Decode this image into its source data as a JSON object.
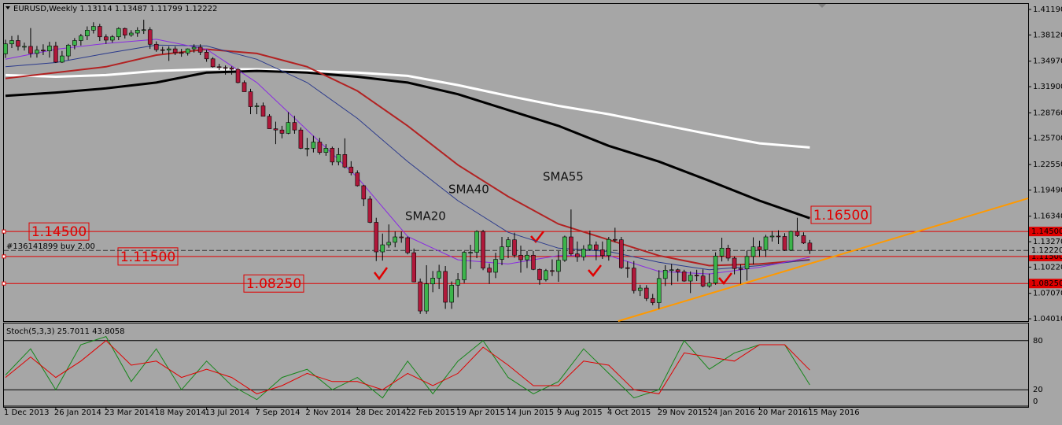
{
  "chart_data": {
    "type": "candlestick",
    "title": "EURUSD,Weekly  1.13114 1.13487 1.11799 1.12222",
    "order_label": "#136141899 buy 2.00",
    "annotations": [
      "SMA20",
      "SMA40",
      "SMA55"
    ],
    "xlim": [
      -0.25,
      162.75
    ],
    "ylim": [
      1.0373,
      1.4185
    ],
    "xticks": [
      {
        "value": 0,
        "label": "1 Dec 2013"
      },
      {
        "value": 8,
        "label": "26 Jan 2014"
      },
      {
        "value": 16,
        "label": "23 Mar 2014"
      },
      {
        "value": 24,
        "label": "18 May 2014"
      },
      {
        "value": 32,
        "label": "13 Jul 2014"
      },
      {
        "value": 40,
        "label": "7 Sep 2014"
      },
      {
        "value": 48,
        "label": "2 Nov 2014"
      },
      {
        "value": 56,
        "label": "28 Dec 2014"
      },
      {
        "value": 64,
        "label": "22 Feb 2015"
      },
      {
        "value": 72,
        "label": "19 Apr 2015"
      },
      {
        "value": 80,
        "label": "14 Jun 2015"
      },
      {
        "value": 88,
        "label": "9 Aug 2015"
      },
      {
        "value": 96,
        "label": "4 Oct 2015"
      },
      {
        "value": 104,
        "label": "29 Nov 2015"
      },
      {
        "value": 112,
        "label": "24 Jan 2016"
      },
      {
        "value": 120,
        "label": "20 Mar 2016"
      },
      {
        "value": 128,
        "label": "15 May 2016"
      }
    ],
    "yticks": [
      {
        "value": 1.4119,
        "label": "1.41190"
      },
      {
        "value": 1.3812,
        "label": "1.38120"
      },
      {
        "value": 1.3497,
        "label": "1.34970"
      },
      {
        "value": 1.319,
        "label": "1.31900"
      },
      {
        "value": 1.2876,
        "label": "1.28760"
      },
      {
        "value": 1.257,
        "label": "1.25700"
      },
      {
        "value": 1.2255,
        "label": "1.22550"
      },
      {
        "value": 1.1949,
        "label": "1.19490"
      },
      {
        "value": 1.1634,
        "label": "1.16340"
      },
      {
        "value": 1.1327,
        "label": "1.13270"
      },
      {
        "value": 1.1022,
        "label": "1.10220"
      },
      {
        "value": 1.0707,
        "label": "1.07070"
      },
      {
        "value": 1.0401,
        "label": "1.04010"
      }
    ],
    "bull_color": "#3cb44b",
    "bear_color": "#b0183a",
    "open": [
      1.3585,
      1.3705,
      1.3745,
      1.3675,
      1.3675,
      1.359,
      1.363,
      1.362,
      1.368,
      1.3485,
      1.356,
      1.369,
      1.3745,
      1.38,
      1.387,
      1.3915,
      1.379,
      1.375,
      1.379,
      1.389,
      1.381,
      1.3835,
      1.387,
      1.3875,
      1.37,
      1.3635,
      1.363,
      1.3645,
      1.36,
      1.3595,
      1.3645,
      1.3665,
      1.3605,
      1.3525,
      1.343,
      1.342,
      1.3415,
      1.34,
      1.324,
      1.313,
      1.295,
      1.296,
      1.2835,
      1.2685,
      1.267,
      1.263,
      1.276,
      1.267,
      1.245,
      1.245,
      1.2525,
      1.24,
      1.245,
      1.2285,
      1.2375,
      1.2225,
      1.2155,
      1.2,
      1.184,
      1.156,
      1.1205,
      1.129,
      1.132,
      1.1385,
      1.1375,
      1.1195,
      1.0845,
      1.0495,
      1.082,
      1.089,
      1.097,
      1.06,
      1.0805,
      1.087,
      1.12,
      1.12,
      1.145,
      1.101,
      1.096,
      1.1115,
      1.1265,
      1.135,
      1.1165,
      1.111,
      1.1165,
      1.0995,
      1.087,
      1.098,
      1.097,
      1.1105,
      1.1385,
      1.118,
      1.1145,
      1.124,
      1.129,
      1.123,
      1.116,
      1.1355,
      1.135,
      1.1015,
      1.101,
      1.074,
      1.077,
      1.0645,
      1.0595,
      1.0885,
      1.0985,
      1.099,
      1.0965,
      1.0855,
      1.0925,
      1.0915,
      1.0795,
      1.083,
      1.1155,
      1.125,
      1.113,
      1.1005,
      1.1,
      1.115,
      1.1265,
      1.123,
      1.1385,
      1.1395,
      1.139,
      1.1225,
      1.145,
      1.14,
      1.13114
    ],
    "high": [
      1.3755,
      1.38,
      1.381,
      1.372,
      1.3895,
      1.368,
      1.37,
      1.373,
      1.373,
      1.362,
      1.3705,
      1.3775,
      1.3825,
      1.3915,
      1.3965,
      1.3945,
      1.382,
      1.381,
      1.3905,
      1.39,
      1.387,
      1.3905,
      1.3995,
      1.3905,
      1.3735,
      1.367,
      1.3675,
      1.3675,
      1.3645,
      1.365,
      1.37,
      1.37,
      1.3635,
      1.3545,
      1.3465,
      1.3445,
      1.3435,
      1.3415,
      1.3265,
      1.3165,
      1.2995,
      1.3,
      1.286,
      1.277,
      1.272,
      1.2885,
      1.284,
      1.27,
      1.2575,
      1.26,
      1.2575,
      1.25,
      1.247,
      1.2455,
      1.257,
      1.2295,
      1.2185,
      1.201,
      1.1875,
      1.1615,
      1.1425,
      1.1535,
      1.145,
      1.145,
      1.139,
      1.1245,
      1.0885,
      1.1045,
      1.0975,
      1.105,
      1.1035,
      1.085,
      1.095,
      1.1215,
      1.129,
      1.1465,
      1.147,
      1.1065,
      1.1195,
      1.1385,
      1.1385,
      1.1435,
      1.128,
      1.1215,
      1.1215,
      1.1005,
      1.1,
      1.1115,
      1.1215,
      1.14,
      1.1715,
      1.133,
      1.1285,
      1.146,
      1.133,
      1.133,
      1.1385,
      1.1495,
      1.1385,
      1.109,
      1.1095,
      1.081,
      1.0805,
      1.07,
      1.0985,
      1.1045,
      1.106,
      1.1005,
      1.099,
      1.097,
      1.099,
      1.0995,
      1.0945,
      1.12,
      1.1375,
      1.129,
      1.115,
      1.1055,
      1.122,
      1.138,
      1.134,
      1.141,
      1.1455,
      1.1465,
      1.143,
      1.146,
      1.1615,
      1.144,
      1.13487
    ],
    "low": [
      1.3535,
      1.3655,
      1.3625,
      1.3625,
      1.354,
      1.354,
      1.357,
      1.354,
      1.3475,
      1.3475,
      1.351,
      1.364,
      1.3685,
      1.375,
      1.383,
      1.374,
      1.3705,
      1.372,
      1.375,
      1.377,
      1.379,
      1.379,
      1.3825,
      1.3645,
      1.361,
      1.3585,
      1.35,
      1.357,
      1.355,
      1.3565,
      1.36,
      1.357,
      1.349,
      1.342,
      1.339,
      1.3335,
      1.3335,
      1.323,
      1.313,
      1.286,
      1.286,
      1.2835,
      1.2685,
      1.25,
      1.257,
      1.262,
      1.2625,
      1.244,
      1.2355,
      1.24,
      1.2375,
      1.236,
      1.2245,
      1.2245,
      1.221,
      1.2125,
      1.199,
      1.1755,
      1.155,
      1.1095,
      1.11,
      1.1255,
      1.126,
      1.1315,
      1.1175,
      1.084,
      1.046,
      1.046,
      1.072,
      1.076,
      1.052,
      1.052,
      1.066,
      1.083,
      1.1,
      1.113,
      1.0985,
      1.082,
      1.089,
      1.1045,
      1.113,
      1.1135,
      1.0955,
      1.101,
      1.0985,
      1.081,
      1.085,
      1.0915,
      1.0845,
      1.1085,
      1.116,
      1.1085,
      1.11,
      1.1215,
      1.1105,
      1.112,
      1.11,
      1.132,
      1.1,
      1.0895,
      1.0705,
      1.0675,
      1.0615,
      1.0565,
      1.052,
      1.0795,
      1.0805,
      1.085,
      1.0845,
      1.071,
      1.0855,
      1.078,
      1.0775,
      1.081,
      1.109,
      1.1095,
      1.0935,
      1.082,
      1.086,
      1.1055,
      1.1145,
      1.1145,
      1.133,
      1.13,
      1.1215,
      1.1215,
      1.1385,
      1.13,
      1.11799
    ],
    "close": [
      1.3705,
      1.3745,
      1.3675,
      1.3675,
      1.359,
      1.363,
      1.362,
      1.368,
      1.3485,
      1.356,
      1.369,
      1.3745,
      1.38,
      1.387,
      1.3915,
      1.379,
      1.375,
      1.379,
      1.389,
      1.381,
      1.3835,
      1.387,
      1.3875,
      1.37,
      1.3635,
      1.363,
      1.3645,
      1.36,
      1.3595,
      1.3645,
      1.3665,
      1.3605,
      1.3525,
      1.343,
      1.342,
      1.3415,
      1.34,
      1.324,
      1.313,
      1.295,
      1.296,
      1.2835,
      1.2685,
      1.267,
      1.263,
      1.276,
      1.267,
      1.245,
      1.245,
      1.2525,
      1.24,
      1.245,
      1.2285,
      1.2375,
      1.2225,
      1.2155,
      1.2,
      1.184,
      1.156,
      1.1205,
      1.129,
      1.132,
      1.1385,
      1.1375,
      1.1195,
      1.0845,
      1.0495,
      1.082,
      1.089,
      1.097,
      1.06,
      1.0805,
      1.087,
      1.12,
      1.12,
      1.145,
      1.101,
      1.096,
      1.1115,
      1.1265,
      1.135,
      1.1165,
      1.111,
      1.1165,
      1.0995,
      1.087,
      1.098,
      1.097,
      1.1105,
      1.1385,
      1.118,
      1.1145,
      1.124,
      1.129,
      1.123,
      1.116,
      1.1355,
      1.135,
      1.1015,
      1.101,
      1.074,
      1.077,
      1.0645,
      1.0595,
      1.0885,
      1.0985,
      1.099,
      1.0965,
      1.0855,
      1.0925,
      1.0915,
      1.0795,
      1.083,
      1.1155,
      1.125,
      1.113,
      1.1005,
      1.1,
      1.115,
      1.1265,
      1.123,
      1.1385,
      1.1395,
      1.139,
      1.1225,
      1.145,
      1.14,
      1.13114,
      1.12222
    ],
    "ma_x": [
      0,
      8,
      16,
      24,
      32,
      40,
      48,
      56,
      64,
      72,
      80,
      88,
      96,
      104,
      112,
      120,
      128
    ],
    "moving_averages": [
      {
        "color": "#ffffff",
        "width": 3,
        "values": [
          1.333,
          1.331,
          1.333,
          1.338,
          1.34,
          1.34,
          1.338,
          1.336,
          1.332,
          1.321,
          1.308,
          1.296,
          1.286,
          1.274,
          1.262,
          1.251,
          1.246
        ]
      },
      {
        "color": "#000000",
        "width": 3,
        "values": [
          1.308,
          1.312,
          1.317,
          1.324,
          1.336,
          1.338,
          1.336,
          1.331,
          1.324,
          1.31,
          1.291,
          1.272,
          1.248,
          1.229,
          1.206,
          1.182,
          1.161
        ]
      },
      {
        "color": "#b22222",
        "width": 2,
        "values": [
          1.329,
          1.336,
          1.343,
          1.357,
          1.364,
          1.359,
          1.343,
          1.314,
          1.272,
          1.225,
          1.187,
          1.154,
          1.135,
          1.116,
          1.104,
          1.106,
          1.111
        ]
      },
      {
        "color": "#2b3a8c",
        "width": 1,
        "values": [
          1.343,
          1.348,
          1.359,
          1.369,
          1.368,
          1.352,
          1.324,
          1.281,
          1.229,
          1.182,
          1.144,
          1.125,
          1.121,
          1.108,
          1.099,
          1.104,
          1.111
        ]
      },
      {
        "color": "#8a2be2",
        "width": 1,
        "values": [
          1.352,
          1.364,
          1.371,
          1.376,
          1.364,
          1.324,
          1.267,
          1.21,
          1.139,
          1.111,
          1.106,
          1.116,
          1.116,
          1.097,
          1.094,
          1.102,
          1.114
        ]
      }
    ],
    "trendline": {
      "color": "#ff9900",
      "x": [
        97.5,
        162.75
      ],
      "values": [
        1.0373,
        1.1849
      ]
    },
    "level_color": "#e00000",
    "levels": [
      {
        "value": 1.145,
        "label": "1.14500"
      },
      {
        "value": 1.115,
        "label": "1.11500"
      },
      {
        "value": 1.0825,
        "label": "1.08250"
      }
    ],
    "callout": {
      "value": 1.165,
      "label": "1.16500"
    },
    "current_price": {
      "value": 1.1222,
      "label": "1.12220"
    },
    "stochastic": {
      "label": "Stoch(5,3,3) 25.7011 43.8058",
      "ylim": [
        0,
        100
      ],
      "yticks": [
        0,
        20,
        80
      ],
      "x": [
        0,
        4,
        8,
        12,
        16,
        20,
        24,
        28,
        32,
        36,
        40,
        44,
        48,
        52,
        56,
        60,
        64,
        68,
        72,
        76,
        80,
        84,
        88,
        92,
        96,
        100,
        104,
        108,
        112,
        116,
        120,
        124,
        128
      ],
      "series": [
        {
          "color": "#16861a",
          "values": [
            38,
            70,
            20,
            75,
            85,
            30,
            70,
            20,
            55,
            25,
            8,
            35,
            45,
            20,
            35,
            10,
            55,
            15,
            55,
            80,
            35,
            15,
            30,
            70,
            40,
            10,
            20,
            80,
            45,
            65,
            75,
            75,
            26
          ]
        },
        {
          "color": "#e00000",
          "values": [
            35,
            60,
            35,
            55,
            80,
            50,
            55,
            35,
            45,
            35,
            15,
            25,
            40,
            30,
            30,
            20,
            40,
            25,
            40,
            72,
            50,
            25,
            25,
            55,
            50,
            20,
            15,
            65,
            60,
            55,
            75,
            75,
            44
          ]
        }
      ]
    }
  }
}
